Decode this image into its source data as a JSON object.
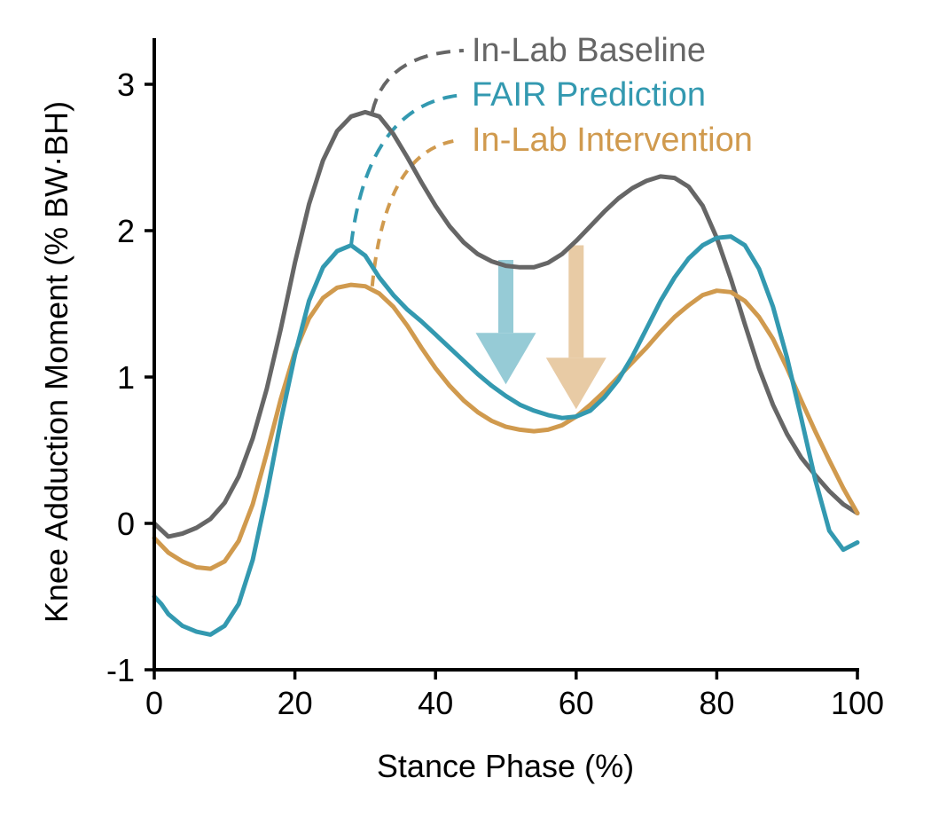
{
  "chart_data": {
    "type": "line",
    "xlabel": "Stance Phase (%)",
    "ylabel": "Knee Adduction Moment (% BW·BH)",
    "xlim": [
      0,
      100
    ],
    "ylim": [
      -1,
      3.3
    ],
    "xticks": [
      "0",
      "20",
      "40",
      "60",
      "80",
      "100"
    ],
    "yticks": [
      "-1",
      "0",
      "1",
      "2",
      "3"
    ],
    "grid": false,
    "legend_placement": "top-center (inline labels with dashed leader lines)",
    "series": [
      {
        "name": "In-Lab Baseline",
        "color": "#666666",
        "x": [
          0,
          2,
          4,
          6,
          8,
          10,
          12,
          14,
          16,
          18,
          20,
          22,
          24,
          26,
          28,
          30,
          32,
          34,
          36,
          38,
          40,
          42,
          44,
          46,
          48,
          50,
          52,
          54,
          56,
          58,
          60,
          62,
          64,
          66,
          68,
          70,
          72,
          74,
          76,
          78,
          80,
          82,
          84,
          86,
          88,
          90,
          92,
          94,
          96,
          98,
          100
        ],
        "y": [
          0.0,
          -0.09,
          -0.07,
          -0.03,
          0.03,
          0.14,
          0.32,
          0.58,
          0.92,
          1.33,
          1.78,
          2.18,
          2.48,
          2.68,
          2.78,
          2.81,
          2.78,
          2.66,
          2.5,
          2.33,
          2.17,
          2.03,
          1.92,
          1.84,
          1.79,
          1.76,
          1.75,
          1.75,
          1.78,
          1.84,
          1.93,
          2.03,
          2.13,
          2.22,
          2.29,
          2.34,
          2.37,
          2.36,
          2.3,
          2.17,
          1.95,
          1.67,
          1.36,
          1.06,
          0.81,
          0.61,
          0.45,
          0.33,
          0.22,
          0.13,
          0.07
        ]
      },
      {
        "name": "FAIR Prediction",
        "color": "#3399b0",
        "x": [
          0,
          1,
          2,
          4,
          6,
          8,
          10,
          12,
          14,
          16,
          18,
          20,
          22,
          24,
          26,
          28,
          30,
          32,
          34,
          36,
          38,
          40,
          42,
          44,
          46,
          48,
          50,
          52,
          54,
          56,
          58,
          60,
          62,
          64,
          66,
          68,
          70,
          72,
          74,
          76,
          78,
          80,
          82,
          84,
          86,
          88,
          90,
          92,
          94,
          96,
          98,
          100
        ],
        "y": [
          -0.5,
          -0.55,
          -0.62,
          -0.7,
          -0.74,
          -0.76,
          -0.7,
          -0.55,
          -0.25,
          0.2,
          0.7,
          1.15,
          1.52,
          1.75,
          1.86,
          1.9,
          1.83,
          1.68,
          1.56,
          1.46,
          1.38,
          1.29,
          1.2,
          1.11,
          1.02,
          0.94,
          0.87,
          0.81,
          0.77,
          0.74,
          0.72,
          0.73,
          0.77,
          0.86,
          0.98,
          1.14,
          1.33,
          1.52,
          1.68,
          1.81,
          1.9,
          1.95,
          1.96,
          1.9,
          1.74,
          1.48,
          1.13,
          0.72,
          0.3,
          -0.05,
          -0.18,
          -0.13
        ]
      },
      {
        "name": "In-Lab Intervention",
        "color": "#d09a4e",
        "x": [
          0,
          2,
          4,
          6,
          8,
          10,
          12,
          14,
          16,
          18,
          20,
          22,
          24,
          26,
          28,
          30,
          32,
          34,
          36,
          38,
          40,
          42,
          44,
          46,
          48,
          50,
          52,
          54,
          56,
          58,
          60,
          62,
          64,
          66,
          68,
          70,
          72,
          74,
          76,
          78,
          80,
          82,
          84,
          86,
          88,
          90,
          92,
          94,
          96,
          98,
          100
        ],
        "y": [
          -0.1,
          -0.2,
          -0.26,
          -0.3,
          -0.31,
          -0.26,
          -0.12,
          0.13,
          0.48,
          0.85,
          1.17,
          1.4,
          1.54,
          1.61,
          1.63,
          1.62,
          1.57,
          1.48,
          1.35,
          1.2,
          1.06,
          0.94,
          0.84,
          0.76,
          0.7,
          0.66,
          0.64,
          0.63,
          0.64,
          0.67,
          0.73,
          0.81,
          0.9,
          1.0,
          1.1,
          1.2,
          1.31,
          1.41,
          1.49,
          1.56,
          1.59,
          1.58,
          1.52,
          1.41,
          1.26,
          1.06,
          0.84,
          0.63,
          0.43,
          0.24,
          0.07
        ]
      }
    ],
    "annotations": [
      {
        "type": "leader",
        "series": "In-Lab Baseline",
        "from": [
          31,
          2.81
        ],
        "to": [
          44,
          3.25
        ],
        "style": "dashed"
      },
      {
        "type": "leader",
        "series": "FAIR Prediction",
        "from": [
          28,
          1.9
        ],
        "to": [
          44,
          2.93
        ],
        "style": "dashed"
      },
      {
        "type": "leader",
        "series": "In-Lab Intervention",
        "from": [
          31,
          1.62
        ],
        "to": [
          43.5,
          2.65
        ],
        "style": "dashed"
      },
      {
        "type": "arrow",
        "color": "#96cbd6",
        "x": 50,
        "from_y": 1.8,
        "to_y": 0.95
      },
      {
        "type": "arrow",
        "color": "#e8cba5",
        "x": 60,
        "from_y": 1.9,
        "to_y": 0.78
      }
    ]
  }
}
